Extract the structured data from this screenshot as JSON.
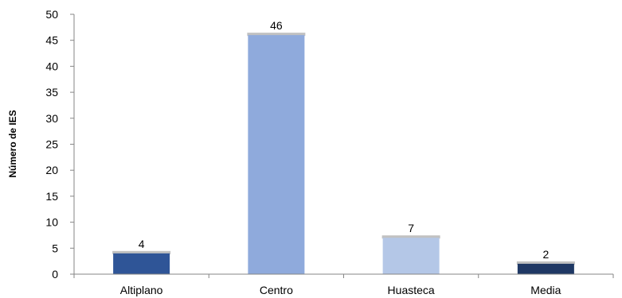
{
  "chart_data": {
    "type": "bar",
    "categories": [
      "Altiplano",
      "Centro",
      "Huasteca",
      "Media"
    ],
    "values": [
      4,
      46,
      7,
      2
    ],
    "data_labels": [
      "4",
      "46",
      "7",
      "2"
    ],
    "title": "",
    "xlabel": "",
    "ylabel": "Número de IES",
    "ylim": [
      0,
      50
    ],
    "yticks": [
      0,
      5,
      10,
      15,
      20,
      25,
      30,
      35,
      40,
      45,
      50
    ],
    "grid": false,
    "legend": "none",
    "colors": [
      "#2f5597",
      "#8faadc",
      "#b4c7e7",
      "#1f3864"
    ]
  }
}
